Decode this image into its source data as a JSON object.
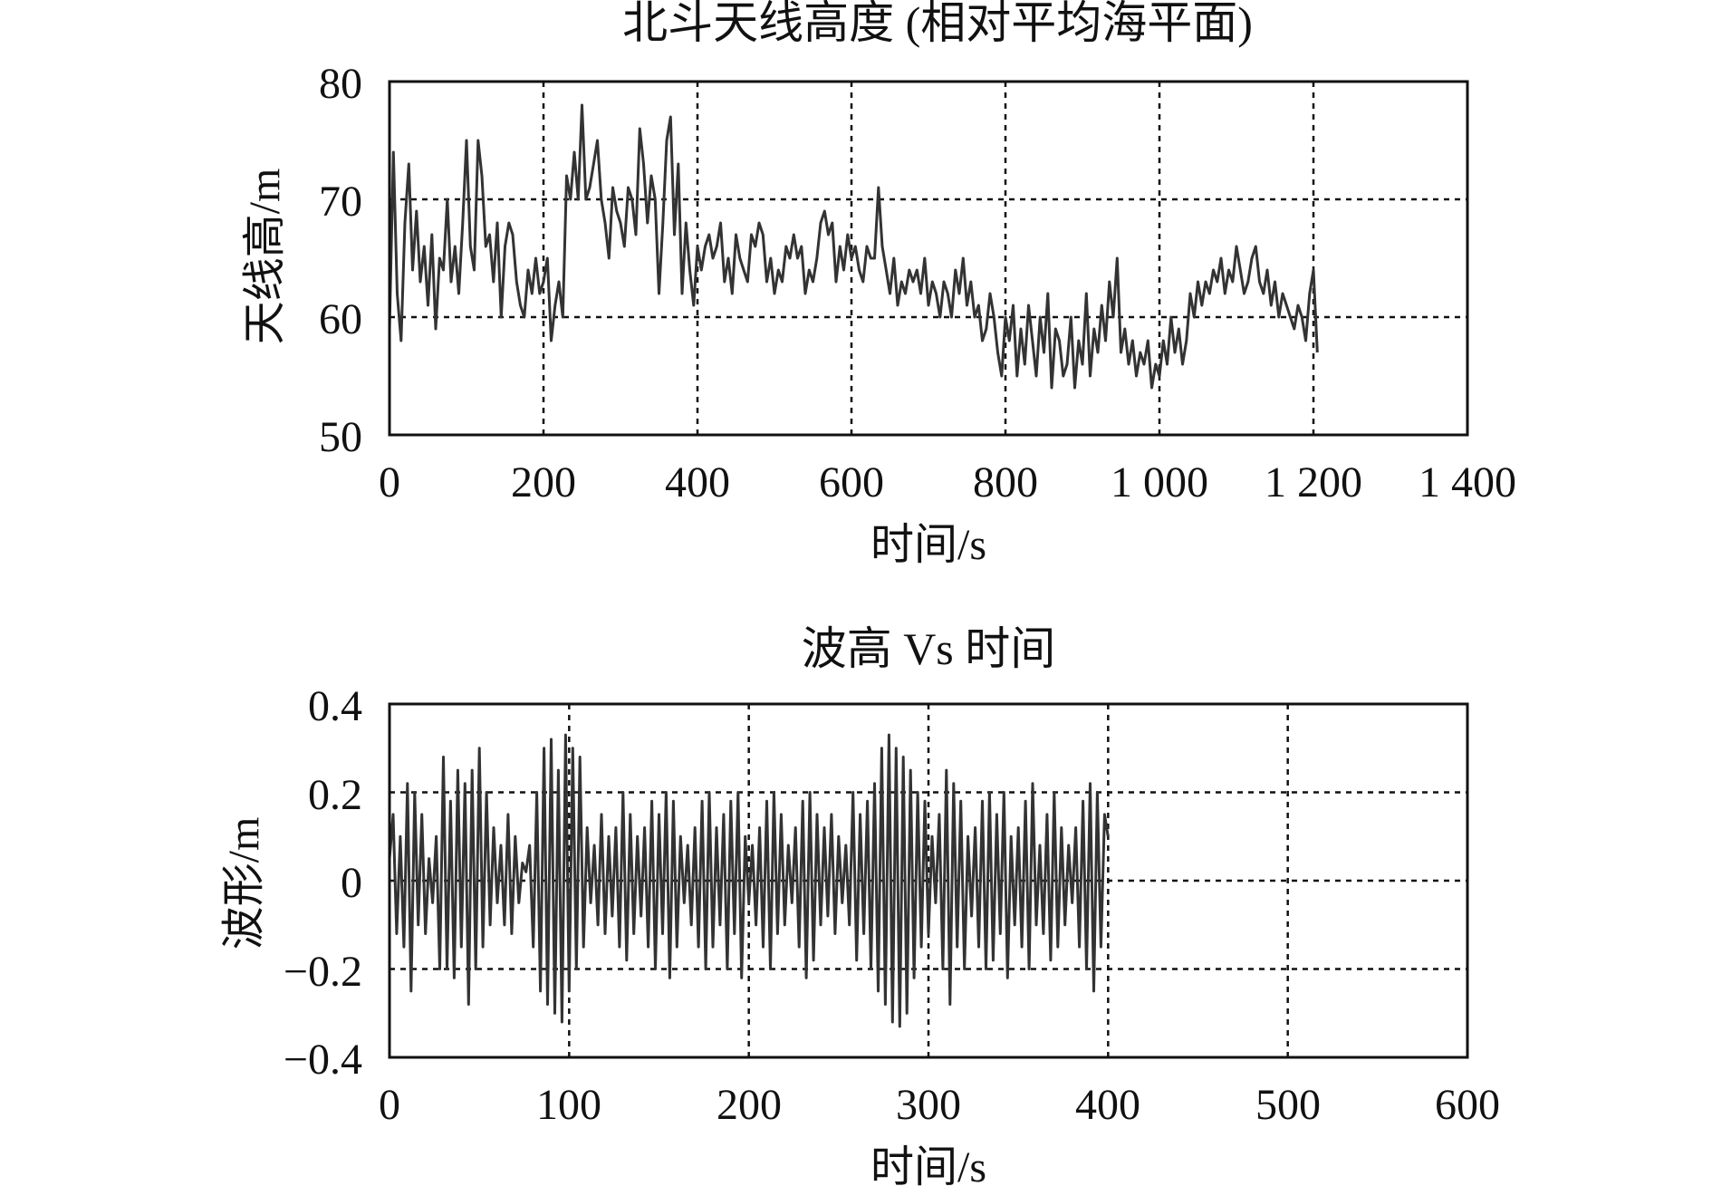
{
  "chart_data": [
    {
      "type": "line",
      "title": "北斗天线高度 (相对平均海平面)",
      "xlabel": "时间/s",
      "ylabel": "天线高/m",
      "xlim": [
        0,
        1400
      ],
      "ylim": [
        50,
        80
      ],
      "xticks": [
        0,
        200,
        400,
        600,
        800,
        1000,
        1200,
        1400
      ],
      "xtick_labels": [
        "0",
        "200",
        "400",
        "600",
        "800",
        "1 000",
        "1 200",
        "1 400"
      ],
      "yticks": [
        50,
        60,
        70,
        80
      ],
      "ytick_labels": [
        "50",
        "60",
        "70",
        "80"
      ],
      "grid": "dashed",
      "x_step": 5,
      "series": [
        {
          "color": "#333333",
          "values": [
            59,
            74,
            62,
            58,
            68,
            73,
            64,
            69,
            63,
            66,
            61,
            67,
            59,
            65,
            64,
            70,
            63,
            66,
            62,
            68,
            75,
            66,
            64,
            75,
            72,
            66,
            67,
            63,
            68,
            60,
            66,
            68,
            67,
            63,
            61,
            60,
            64,
            62,
            65,
            62,
            63,
            65,
            58,
            61,
            63,
            60,
            72,
            70,
            74,
            70,
            78,
            70,
            71,
            73,
            75,
            70,
            68,
            65,
            71,
            69,
            68,
            66,
            71,
            70,
            67,
            76,
            73,
            68,
            72,
            70,
            62,
            68,
            75,
            77,
            67,
            73,
            62,
            68,
            64,
            61,
            66,
            64,
            66,
            67,
            65,
            66,
            68,
            63,
            65,
            62,
            67,
            65,
            64,
            63,
            67,
            66,
            68,
            67,
            63,
            65,
            62,
            64,
            63,
            66,
            65,
            67,
            65,
            66,
            62,
            64,
            63,
            65,
            68,
            69,
            67,
            68,
            63,
            66,
            64,
            67,
            65,
            66,
            64,
            63,
            66,
            65,
            65,
            71,
            66,
            64,
            62,
            65,
            61,
            63,
            62,
            64,
            63,
            64,
            62,
            65,
            61,
            63,
            62,
            60,
            63,
            62,
            60,
            64,
            62,
            65,
            61,
            63,
            60,
            61,
            58,
            59,
            62,
            60,
            57,
            55,
            60,
            58,
            61,
            55,
            59,
            56,
            61,
            58,
            55,
            60,
            57,
            62,
            54,
            59,
            58,
            55,
            56,
            60,
            54,
            58,
            56,
            62,
            55,
            59,
            57,
            61,
            58,
            63,
            60,
            65,
            57,
            59,
            56,
            58,
            55,
            57,
            56,
            58,
            54,
            56,
            55,
            58,
            56,
            60,
            57,
            59,
            56,
            58,
            62,
            60,
            63,
            61,
            63,
            62,
            64,
            63,
            65,
            62,
            64,
            63,
            66,
            64,
            62,
            63,
            65,
            66,
            63,
            62,
            64,
            61,
            63,
            60,
            62,
            61,
            60,
            59,
            61,
            60,
            58,
            62,
            64,
            57
          ]
        }
      ]
    },
    {
      "type": "line",
      "title": "波高 Vs 时间",
      "xlabel": "时间/s",
      "ylabel": "波形/m",
      "xlim": [
        0,
        600
      ],
      "ylim": [
        -0.4,
        0.4
      ],
      "xticks": [
        0,
        100,
        200,
        300,
        400,
        500,
        600
      ],
      "xtick_labels": [
        "0",
        "100",
        "200",
        "300",
        "400",
        "500",
        "600"
      ],
      "yticks": [
        -0.4,
        -0.2,
        0,
        0.2,
        0.4
      ],
      "ytick_labels": [
        "−0.4",
        "−0.2",
        "0",
        "0.2",
        "0.4"
      ],
      "grid": "dashed",
      "x_step": 2,
      "series": [
        {
          "color": "#333333",
          "values": [
            0.05,
            0.15,
            -0.12,
            0.1,
            -0.15,
            0.22,
            -0.25,
            0.2,
            -0.1,
            0.15,
            -0.12,
            0.05,
            -0.05,
            0.1,
            -0.2,
            0.28,
            -0.2,
            0.18,
            -0.22,
            0.25,
            -0.15,
            0.22,
            -0.28,
            0.25,
            -0.2,
            0.3,
            -0.15,
            0.2,
            -0.1,
            0.12,
            -0.05,
            0.08,
            -0.1,
            0.15,
            -0.12,
            0.1,
            -0.05,
            0.04,
            0.02,
            0.08,
            -0.15,
            0.2,
            -0.25,
            0.3,
            -0.28,
            0.32,
            -0.3,
            0.25,
            -0.32,
            0.33,
            -0.25,
            0.3,
            -0.2,
            0.28,
            -0.15,
            0.12,
            -0.05,
            0.08,
            -0.1,
            0.15,
            -0.12,
            0.1,
            -0.08,
            0.12,
            -0.15,
            0.2,
            -0.18,
            0.15,
            -0.12,
            0.1,
            -0.08,
            0.12,
            -0.15,
            0.18,
            -0.2,
            0.15,
            -0.12,
            0.2,
            -0.22,
            0.18,
            -0.15,
            0.1,
            -0.05,
            0.08,
            -0.1,
            0.12,
            -0.15,
            0.18,
            -0.2,
            0.2,
            -0.15,
            0.12,
            -0.1,
            0.15,
            -0.2,
            0.18,
            -0.12,
            0.2,
            -0.22,
            0.1,
            -0.05,
            0.08,
            -0.1,
            0.12,
            -0.15,
            0.18,
            -0.2,
            0.2,
            -0.12,
            0.15,
            -0.1,
            0.08,
            -0.05,
            0.12,
            -0.15,
            0.18,
            -0.22,
            0.2,
            -0.18,
            0.15,
            -0.1,
            0.12,
            -0.08,
            0.15,
            -0.12,
            0.1,
            -0.05,
            0.08,
            -0.1,
            0.2,
            -0.18,
            0.15,
            -0.12,
            0.18,
            -0.2,
            0.22,
            -0.25,
            0.3,
            -0.28,
            0.33,
            -0.32,
            0.3,
            -0.33,
            0.28,
            -0.3,
            0.25,
            -0.22,
            0.2,
            -0.15,
            0.18,
            -0.12,
            0.1,
            -0.05,
            0.15,
            -0.2,
            0.25,
            -0.28,
            0.22,
            -0.15,
            0.18,
            -0.2,
            0.1,
            -0.08,
            0.12,
            -0.15,
            0.18,
            -0.2,
            0.2,
            -0.18,
            0.15,
            -0.12,
            0.2,
            -0.22,
            0.1,
            -0.1,
            0.12,
            -0.15,
            0.18,
            -0.2,
            0.22,
            -0.1,
            0.08,
            -0.12,
            0.15,
            -0.18,
            0.2,
            -0.15,
            0.12,
            -0.1,
            0.08,
            -0.05,
            0.12,
            -0.15,
            0.18,
            -0.2,
            0.22,
            -0.25,
            0.2,
            -0.15,
            0.15,
            0.1
          ]
        }
      ]
    }
  ]
}
